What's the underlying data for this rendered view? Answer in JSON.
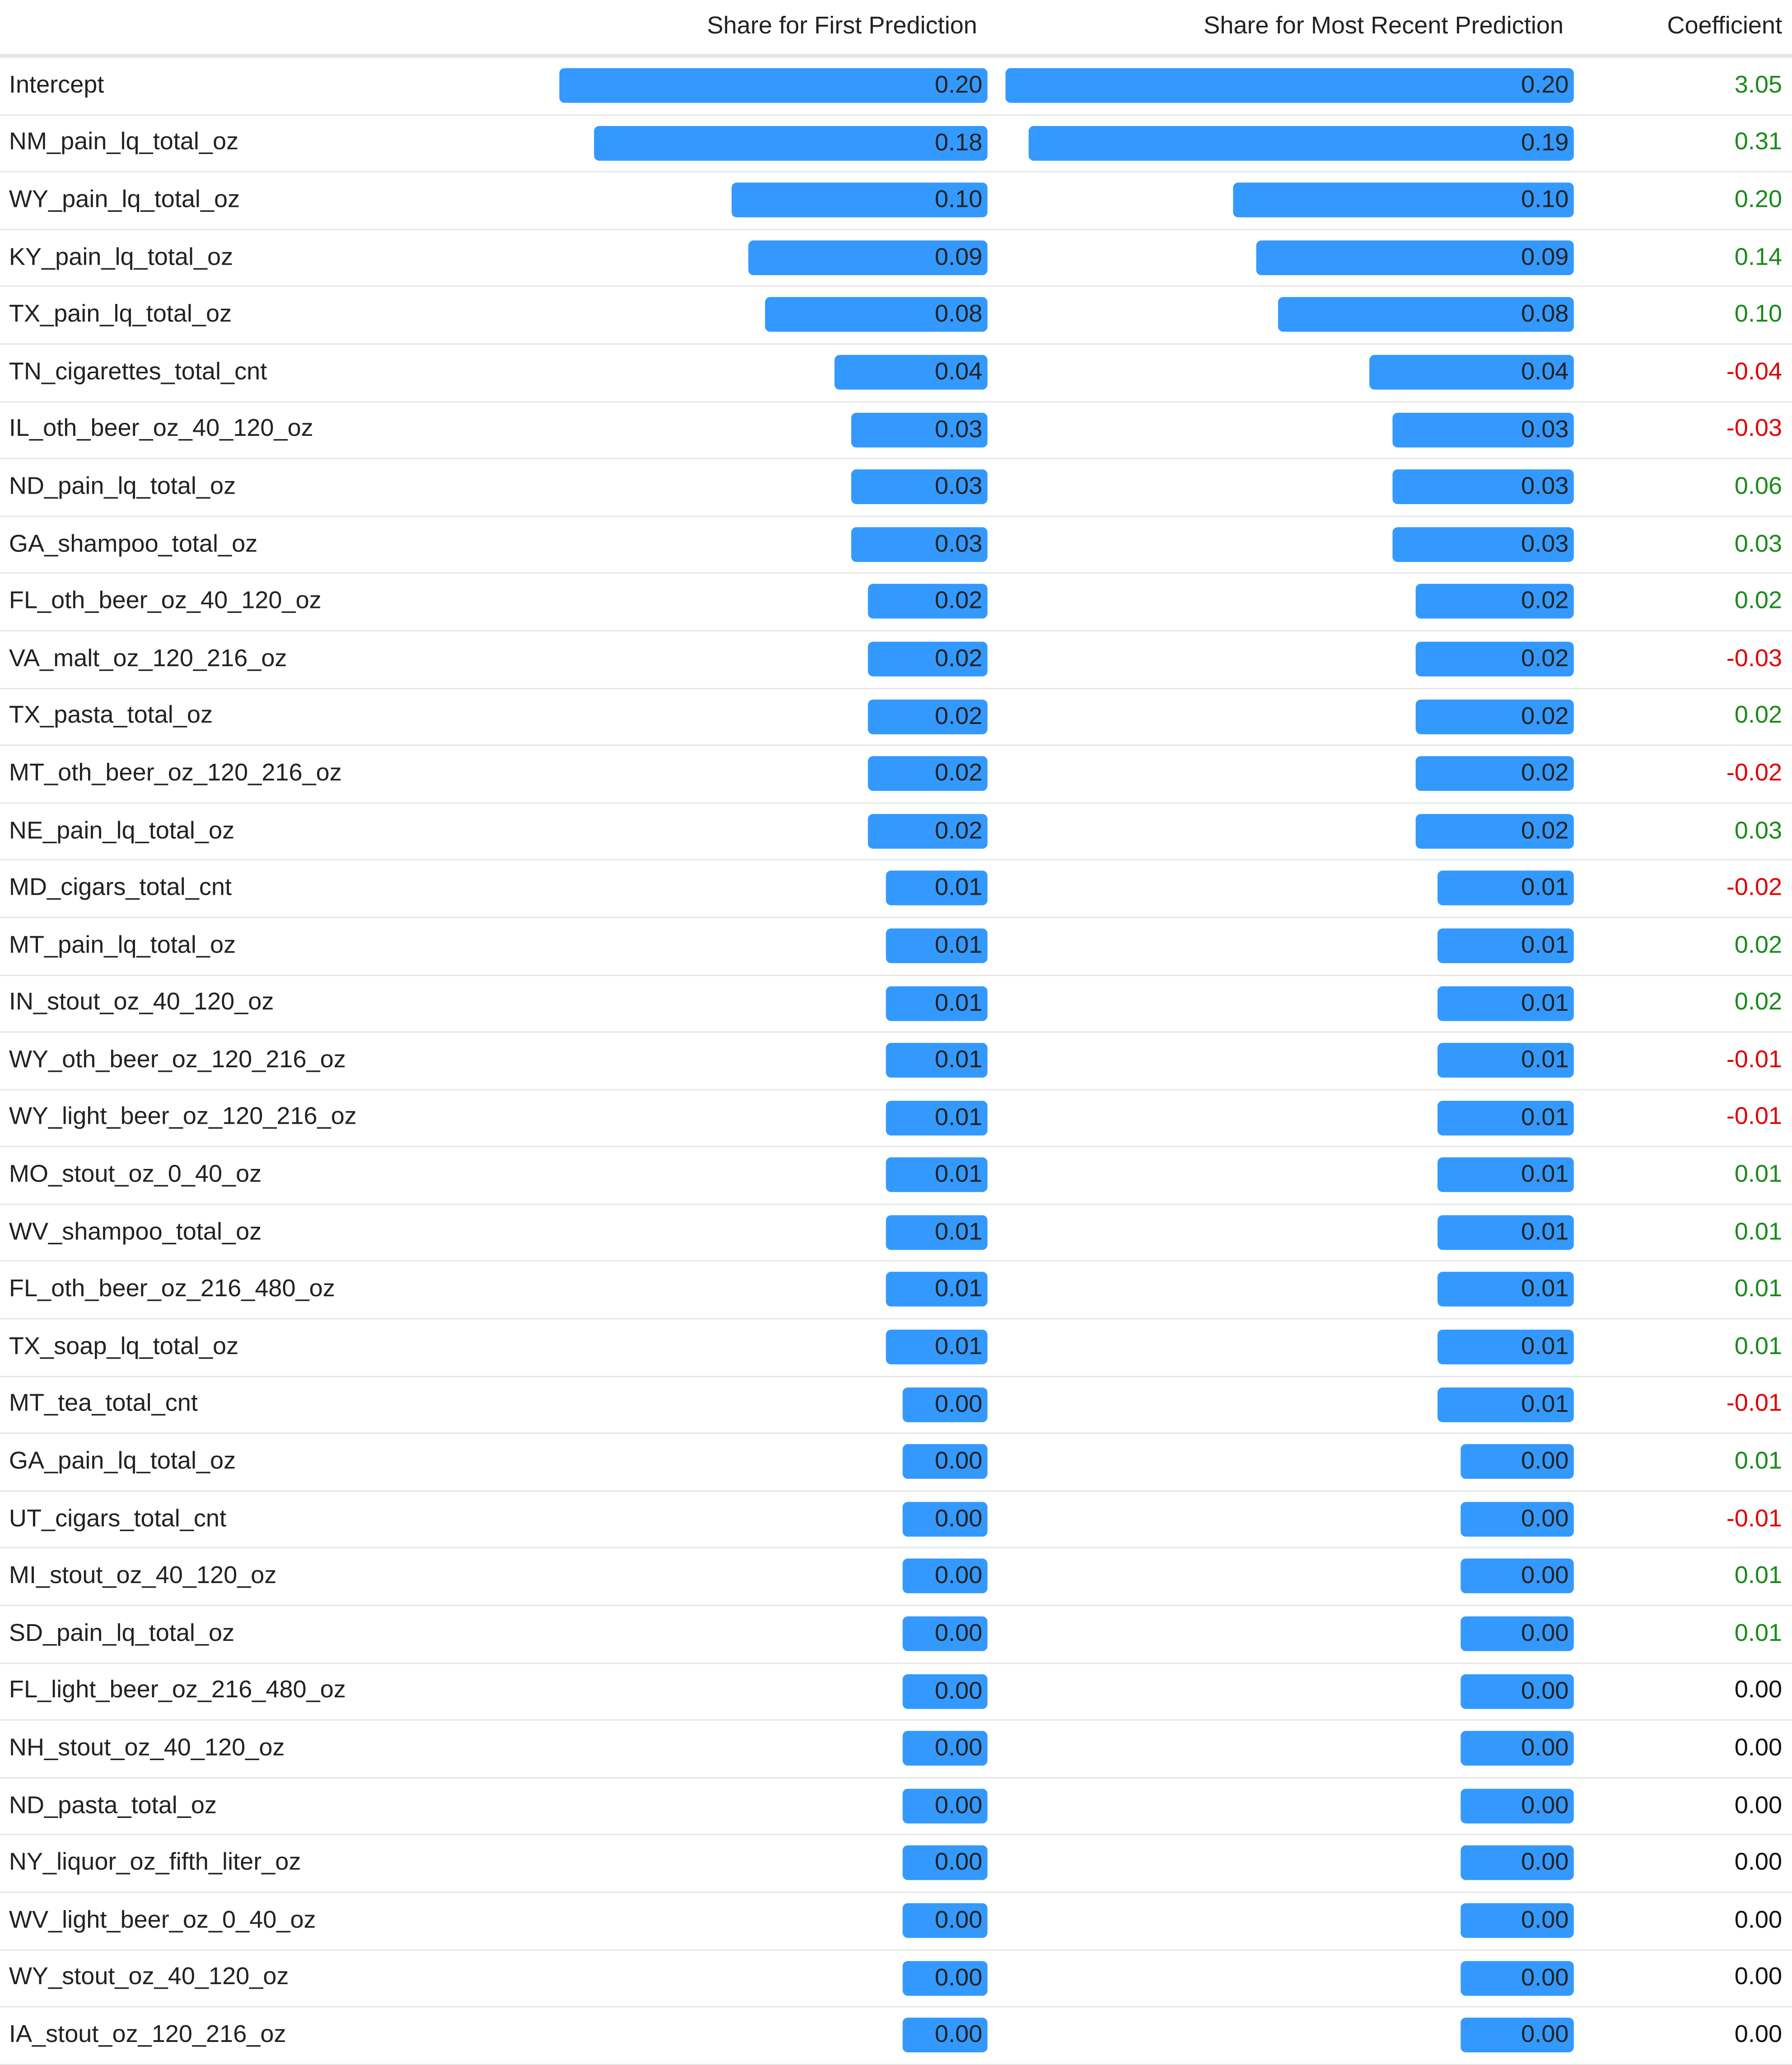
{
  "headers": {
    "name": "",
    "first": "Share for First Prediction",
    "recent": "Share for Most Recent Prediction",
    "coef": "Coefficient"
  },
  "colors": {
    "bar": "#3399ff",
    "positive": "#1a8a1a",
    "negative": "#e00000"
  },
  "rows": [
    {
      "name": "Intercept",
      "first": "0.20",
      "recent": "0.20",
      "coef": "3.05",
      "sign": "pos"
    },
    {
      "name": "NM_pain_lq_total_oz",
      "first": "0.18",
      "recent": "0.19",
      "coef": "0.31",
      "sign": "pos"
    },
    {
      "name": "WY_pain_lq_total_oz",
      "first": "0.10",
      "recent": "0.10",
      "coef": "0.20",
      "sign": "pos"
    },
    {
      "name": "KY_pain_lq_total_oz",
      "first": "0.09",
      "recent": "0.09",
      "coef": "0.14",
      "sign": "pos"
    },
    {
      "name": "TX_pain_lq_total_oz",
      "first": "0.08",
      "recent": "0.08",
      "coef": "0.10",
      "sign": "pos"
    },
    {
      "name": "TN_cigarettes_total_cnt",
      "first": "0.04",
      "recent": "0.04",
      "coef": "-0.04",
      "sign": "neg"
    },
    {
      "name": "IL_oth_beer_oz_40_120_oz",
      "first": "0.03",
      "recent": "0.03",
      "coef": "-0.03",
      "sign": "neg"
    },
    {
      "name": "ND_pain_lq_total_oz",
      "first": "0.03",
      "recent": "0.03",
      "coef": "0.06",
      "sign": "pos"
    },
    {
      "name": "GA_shampoo_total_oz",
      "first": "0.03",
      "recent": "0.03",
      "coef": "0.03",
      "sign": "pos"
    },
    {
      "name": "FL_oth_beer_oz_40_120_oz",
      "first": "0.02",
      "recent": "0.02",
      "coef": "0.02",
      "sign": "pos"
    },
    {
      "name": "VA_malt_oz_120_216_oz",
      "first": "0.02",
      "recent": "0.02",
      "coef": "-0.03",
      "sign": "neg"
    },
    {
      "name": "TX_pasta_total_oz",
      "first": "0.02",
      "recent": "0.02",
      "coef": "0.02",
      "sign": "pos"
    },
    {
      "name": "MT_oth_beer_oz_120_216_oz",
      "first": "0.02",
      "recent": "0.02",
      "coef": "-0.02",
      "sign": "neg"
    },
    {
      "name": "NE_pain_lq_total_oz",
      "first": "0.02",
      "recent": "0.02",
      "coef": "0.03",
      "sign": "pos"
    },
    {
      "name": "MD_cigars_total_cnt",
      "first": "0.01",
      "recent": "0.01",
      "coef": "-0.02",
      "sign": "neg"
    },
    {
      "name": "MT_pain_lq_total_oz",
      "first": "0.01",
      "recent": "0.01",
      "coef": "0.02",
      "sign": "pos"
    },
    {
      "name": "IN_stout_oz_40_120_oz",
      "first": "0.01",
      "recent": "0.01",
      "coef": "0.02",
      "sign": "pos"
    },
    {
      "name": "WY_oth_beer_oz_120_216_oz",
      "first": "0.01",
      "recent": "0.01",
      "coef": "-0.01",
      "sign": "neg"
    },
    {
      "name": "WY_light_beer_oz_120_216_oz",
      "first": "0.01",
      "recent": "0.01",
      "coef": "-0.01",
      "sign": "neg"
    },
    {
      "name": "MO_stout_oz_0_40_oz",
      "first": "0.01",
      "recent": "0.01",
      "coef": "0.01",
      "sign": "pos"
    },
    {
      "name": "WV_shampoo_total_oz",
      "first": "0.01",
      "recent": "0.01",
      "coef": "0.01",
      "sign": "pos"
    },
    {
      "name": "FL_oth_beer_oz_216_480_oz",
      "first": "0.01",
      "recent": "0.01",
      "coef": "0.01",
      "sign": "pos"
    },
    {
      "name": "TX_soap_lq_total_oz",
      "first": "0.01",
      "recent": "0.01",
      "coef": "0.01",
      "sign": "pos"
    },
    {
      "name": "MT_tea_total_cnt",
      "first": "0.00",
      "recent": "0.01",
      "coef": "-0.01",
      "sign": "neg"
    },
    {
      "name": "GA_pain_lq_total_oz",
      "first": "0.00",
      "recent": "0.00",
      "coef": "0.01",
      "sign": "pos"
    },
    {
      "name": "UT_cigars_total_cnt",
      "first": "0.00",
      "recent": "0.00",
      "coef": "-0.01",
      "sign": "neg"
    },
    {
      "name": "MI_stout_oz_40_120_oz",
      "first": "0.00",
      "recent": "0.00",
      "coef": "0.01",
      "sign": "pos"
    },
    {
      "name": "SD_pain_lq_total_oz",
      "first": "0.00",
      "recent": "0.00",
      "coef": "0.01",
      "sign": "pos"
    },
    {
      "name": "FL_light_beer_oz_216_480_oz",
      "first": "0.00",
      "recent": "0.00",
      "coef": "0.00",
      "sign": "zero"
    },
    {
      "name": "NH_stout_oz_40_120_oz",
      "first": "0.00",
      "recent": "0.00",
      "coef": "0.00",
      "sign": "zero"
    },
    {
      "name": "ND_pasta_total_oz",
      "first": "0.00",
      "recent": "0.00",
      "coef": "0.00",
      "sign": "zero"
    },
    {
      "name": "NY_liquor_oz_fifth_liter_oz",
      "first": "0.00",
      "recent": "0.00",
      "coef": "0.00",
      "sign": "zero"
    },
    {
      "name": "WV_light_beer_oz_0_40_oz",
      "first": "0.00",
      "recent": "0.00",
      "coef": "0.00",
      "sign": "zero"
    },
    {
      "name": "WY_stout_oz_40_120_oz",
      "first": "0.00",
      "recent": "0.00",
      "coef": "0.00",
      "sign": "zero"
    },
    {
      "name": "IA_stout_oz_120_216_oz",
      "first": "0.00",
      "recent": "0.00",
      "coef": "0.00",
      "sign": "zero"
    }
  ]
}
